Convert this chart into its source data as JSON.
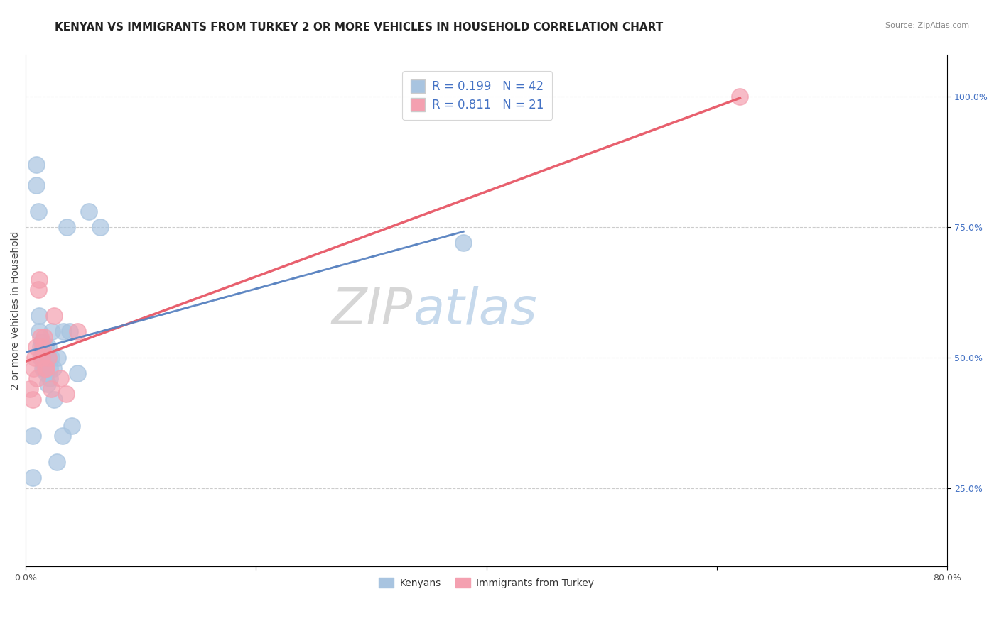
{
  "title": "KENYAN VS IMMIGRANTS FROM TURKEY 2 OR MORE VEHICLES IN HOUSEHOLD CORRELATION CHART",
  "source": "Source: ZipAtlas.com",
  "ylabel": "2 or more Vehicles in Household",
  "right_yticks": [
    "100.0%",
    "75.0%",
    "50.0%",
    "25.0%"
  ],
  "right_ytick_vals": [
    1.0,
    0.75,
    0.5,
    0.25
  ],
  "kenyan_label": "Kenyans",
  "turkey_label": "Immigrants from Turkey",
  "blue_color": "#a8c4e0",
  "pink_color": "#f4a0b0",
  "blue_line_color": "#5580c0",
  "pink_line_color": "#e8606e",
  "dashed_line_color": "#a0b8d8",
  "watermark_zip": "ZIP",
  "watermark_atlas": "atlas",
  "blue_r": "0.199",
  "blue_n": "42",
  "pink_r": "0.811",
  "pink_n": "21",
  "kenyan_x": [
    0.006,
    0.006,
    0.009,
    0.009,
    0.011,
    0.012,
    0.012,
    0.013,
    0.013,
    0.014,
    0.014,
    0.015,
    0.015,
    0.015,
    0.016,
    0.016,
    0.016,
    0.017,
    0.017,
    0.018,
    0.018,
    0.019,
    0.019,
    0.02,
    0.02,
    0.021,
    0.021,
    0.022,
    0.023,
    0.024,
    0.025,
    0.027,
    0.028,
    0.032,
    0.033,
    0.036,
    0.038,
    0.04,
    0.045,
    0.055,
    0.065,
    0.38
  ],
  "kenyan_y": [
    0.35,
    0.27,
    0.83,
    0.87,
    0.78,
    0.55,
    0.58,
    0.5,
    0.52,
    0.53,
    0.53,
    0.48,
    0.5,
    0.51,
    0.48,
    0.49,
    0.51,
    0.5,
    0.52,
    0.47,
    0.49,
    0.45,
    0.5,
    0.5,
    0.52,
    0.46,
    0.48,
    0.5,
    0.55,
    0.48,
    0.42,
    0.3,
    0.5,
    0.35,
    0.55,
    0.75,
    0.55,
    0.37,
    0.47,
    0.78,
    0.75,
    0.72
  ],
  "turkey_x": [
    0.004,
    0.006,
    0.007,
    0.008,
    0.009,
    0.01,
    0.011,
    0.012,
    0.013,
    0.014,
    0.015,
    0.016,
    0.017,
    0.018,
    0.02,
    0.022,
    0.025,
    0.03,
    0.035,
    0.045,
    0.62
  ],
  "turkey_y": [
    0.44,
    0.42,
    0.48,
    0.5,
    0.52,
    0.46,
    0.63,
    0.65,
    0.54,
    0.5,
    0.52,
    0.54,
    0.48,
    0.48,
    0.5,
    0.44,
    0.58,
    0.46,
    0.43,
    0.55,
    1.0
  ],
  "xlim": [
    0.0,
    0.8
  ],
  "ylim": [
    0.1,
    1.08
  ],
  "title_fontsize": 11,
  "axis_label_fontsize": 10,
  "tick_fontsize": 9,
  "legend_fontsize": 12,
  "watermark_fontsize_zip": 52,
  "watermark_fontsize_atlas": 52
}
